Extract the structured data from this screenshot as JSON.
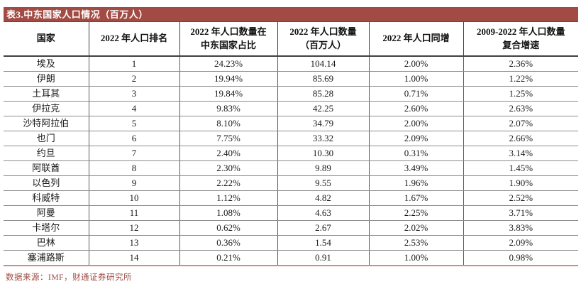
{
  "figure": {
    "title": "表3.中东国家人口情况（百万人）",
    "source_note": "数据来源：IMF，财通证券研究所"
  },
  "colors": {
    "title_bar_bg": "#A24B44",
    "title_text": "#FFFFFF",
    "header_border": "#3F3F3F",
    "row_border": "#8C8C8C",
    "column_border": "#595959",
    "table_bottom_border": "#D4897C",
    "source_text": "#9C4A43"
  },
  "chart_data": {
    "type": "table",
    "title": "表3.中东国家人口情况（百万人）",
    "columns": [
      "国家",
      "2022 年人口排名",
      "2022 年人口数量在\n中东国家占比",
      "2022 年人口数量\n（百万人）",
      "2022 年人口同增",
      "2009-2022 年人口数量\n复合增速"
    ],
    "rows": [
      [
        "埃及",
        "1",
        "24.23%",
        "104.14",
        "2.00%",
        "2.36%"
      ],
      [
        "伊朗",
        "2",
        "19.94%",
        "85.69",
        "1.00%",
        "1.22%"
      ],
      [
        "土耳其",
        "3",
        "19.84%",
        "85.28",
        "0.71%",
        "1.25%"
      ],
      [
        "伊拉克",
        "4",
        "9.83%",
        "42.25",
        "2.60%",
        "2.63%"
      ],
      [
        "沙特阿拉伯",
        "5",
        "8.10%",
        "34.79",
        "2.00%",
        "2.07%"
      ],
      [
        "也门",
        "6",
        "7.75%",
        "33.32",
        "2.09%",
        "2.66%"
      ],
      [
        "约旦",
        "7",
        "2.40%",
        "10.30",
        "0.31%",
        "3.14%"
      ],
      [
        "阿联酋",
        "8",
        "2.30%",
        "9.89",
        "3.49%",
        "1.45%"
      ],
      [
        "以色列",
        "9",
        "2.22%",
        "9.55",
        "1.96%",
        "1.90%"
      ],
      [
        "科威特",
        "10",
        "1.12%",
        "4.82",
        "1.67%",
        "2.52%"
      ],
      [
        "阿曼",
        "11",
        "1.08%",
        "4.63",
        "2.25%",
        "3.71%"
      ],
      [
        "卡塔尔",
        "12",
        "0.62%",
        "2.67",
        "2.02%",
        "3.83%"
      ],
      [
        "巴林",
        "13",
        "0.36%",
        "1.54",
        "2.53%",
        "2.09%"
      ],
      [
        "塞浦路斯",
        "14",
        "0.21%",
        "0.91",
        "1.00%",
        "0.98%"
      ]
    ],
    "source": "数据来源：IMF，财通证券研究所"
  }
}
